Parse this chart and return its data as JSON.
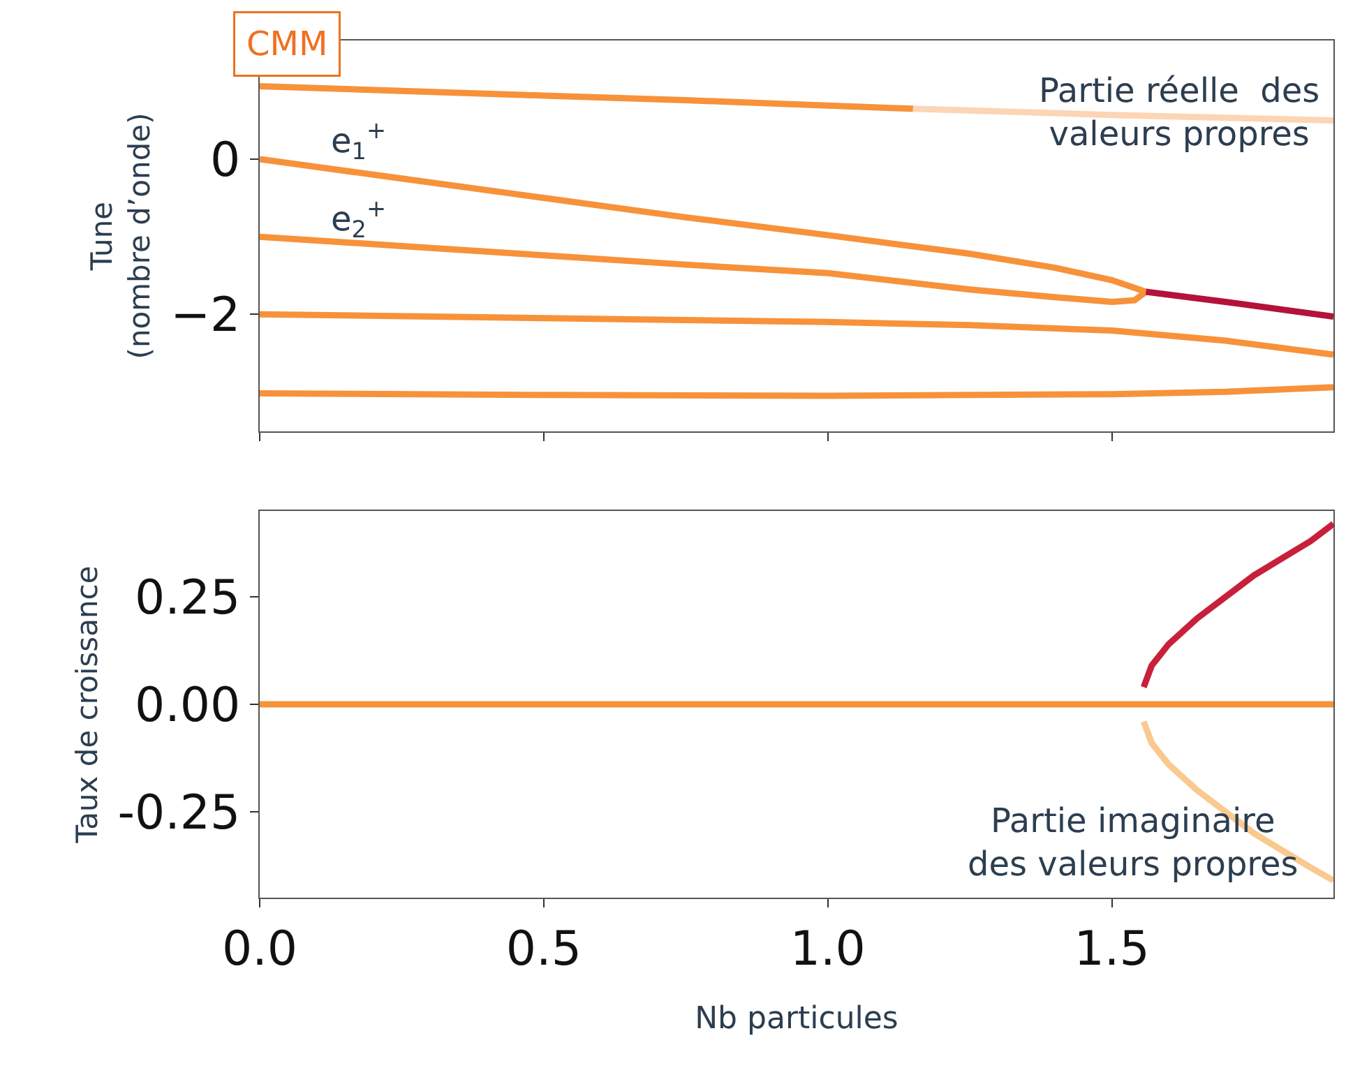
{
  "chart_data": [
    {
      "type": "line",
      "ylabel": "Tune\n(nombre d’onde)",
      "xlim": [
        0,
        1.89
      ],
      "xticks": [
        {
          "value": 0,
          "label": null
        },
        {
          "value": 0.5,
          "label": null
        },
        {
          "value": 1,
          "label": null
        },
        {
          "value": 1.5,
          "label": null
        }
      ],
      "ylim": [
        -3.51,
        1.53
      ],
      "yticks": [
        0,
        {
          "value": -2,
          "label": "−2"
        }
      ],
      "tick_labels": "y",
      "annotations": [
        "CMM",
        {
          "text": "e$_{1}$$^{+}$",
          "x": 0.12,
          "y": 0
        },
        {
          "text": "e$_{2}$$^{+}$",
          "x": 0.12,
          "y": -1.0
        },
        "Partie réelle  des\nvaleurs propres"
      ],
      "series": [
        {
          "color": "#f7923a",
          "x": [
            0,
            0.25,
            0.5,
            0.75,
            1.0,
            1.15
          ],
          "values": [
            0.94,
            0.88,
            0.82,
            0.76,
            0.69,
            0.65
          ]
        },
        {
          "color": "#fcd5b5",
          "x": [
            1.15,
            1.5,
            1.89
          ],
          "values": [
            0.65,
            0.57,
            0.5
          ]
        },
        {
          "color": "#f7923a",
          "x": [
            0,
            0.25,
            0.5,
            0.75,
            1.0,
            1.25,
            1.4,
            1.5,
            1.56
          ],
          "values": [
            0,
            -0.25,
            -0.5,
            -0.75,
            -0.98,
            -1.22,
            -1.4,
            -1.56,
            -1.71
          ]
        },
        {
          "color": "#f7923a",
          "x": [
            0,
            0.25,
            0.5,
            0.75,
            1.0,
            1.25,
            1.4,
            1.5,
            1.54,
            1.56
          ],
          "values": [
            -1.0,
            -1.12,
            -1.24,
            -1.36,
            -1.47,
            -1.68,
            -1.78,
            -1.84,
            -1.82,
            -1.71
          ]
        },
        {
          "color": "#b3123a",
          "x": [
            1.56,
            1.7,
            1.89
          ],
          "values": [
            -1.71,
            -1.84,
            -2.03
          ]
        },
        {
          "color": "#f7923a",
          "x": [
            0,
            0.5,
            1.0,
            1.25,
            1.5,
            1.7,
            1.89
          ],
          "values": [
            -2.0,
            -2.05,
            -2.1,
            -2.14,
            -2.21,
            -2.34,
            -2.52
          ]
        },
        {
          "color": "#f7923a",
          "x": [
            0,
            0.5,
            1.0,
            1.5,
            1.7,
            1.89
          ],
          "values": [
            -3.02,
            -3.04,
            -3.05,
            -3.03,
            -3.0,
            -2.94
          ]
        }
      ]
    },
    {
      "type": "line",
      "ylabel": "Taux de croissance",
      "xlabel": "Nb particules",
      "xlim": [
        0,
        1.89
      ],
      "xticks": [
        {
          "value": 0,
          "label": "0.0"
        },
        {
          "value": 0.5,
          "label": "0.5"
        },
        {
          "value": 1,
          "label": "1.0"
        },
        {
          "value": 1.5,
          "label": "1.5"
        }
      ],
      "ylim": [
        -0.45,
        0.45
      ],
      "yticks": [
        {
          "value": -0.25,
          "label": "-0.25"
        },
        {
          "value": 0,
          "label": "0.00"
        },
        0.25
      ],
      "annotations": [
        "Partie imaginaire\ndes valeurs propres"
      ],
      "series": [
        {
          "color": "#f7923a",
          "x": [
            0,
            0.5,
            1.0,
            1.5,
            1.89
          ],
          "values": [
            0,
            0,
            0,
            0,
            0
          ]
        },
        {
          "color": "#c8203a",
          "x": [
            1.556,
            1.57,
            1.6,
            1.65,
            1.7,
            1.75,
            1.8,
            1.85,
            1.89
          ],
          "values": [
            0.04,
            0.09,
            0.14,
            0.2,
            0.25,
            0.3,
            0.34,
            0.38,
            0.42
          ]
        },
        {
          "color": "#f9c98f",
          "x": [
            1.556,
            1.57,
            1.6,
            1.65,
            1.7,
            1.75,
            1.8,
            1.85,
            1.89
          ],
          "values": [
            -0.04,
            -0.09,
            -0.14,
            -0.2,
            -0.25,
            -0.3,
            -0.34,
            -0.38,
            -0.41
          ]
        }
      ]
    }
  ]
}
